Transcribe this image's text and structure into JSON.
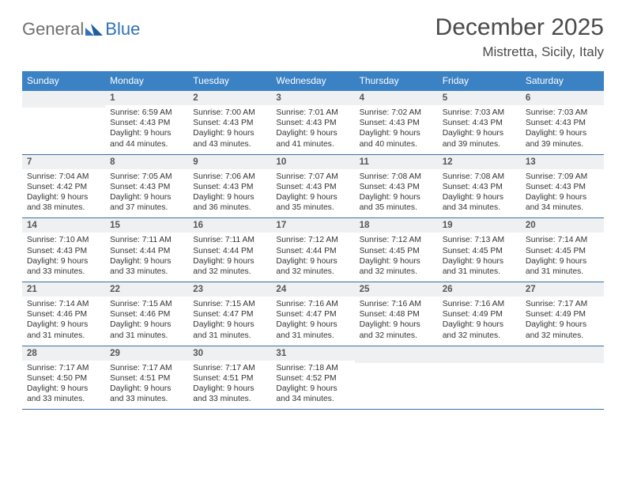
{
  "brand": {
    "text1": "General",
    "text2": "Blue"
  },
  "title": "December 2025",
  "location": "Mistretta, Sicily, Italy",
  "day_names": [
    "Sunday",
    "Monday",
    "Tuesday",
    "Wednesday",
    "Thursday",
    "Friday",
    "Saturday"
  ],
  "colors": {
    "header_bg": "#3b82c4",
    "logo_gray": "#6f6f6f",
    "logo_blue": "#2f72b8",
    "daynum_bg": "#eef0f2",
    "rule": "#3b6fa0"
  },
  "weeks": [
    [
      {
        "n": "",
        "lines": []
      },
      {
        "n": "1",
        "lines": [
          "Sunrise: 6:59 AM",
          "Sunset: 4:43 PM",
          "Daylight: 9 hours",
          "and 44 minutes."
        ]
      },
      {
        "n": "2",
        "lines": [
          "Sunrise: 7:00 AM",
          "Sunset: 4:43 PM",
          "Daylight: 9 hours",
          "and 43 minutes."
        ]
      },
      {
        "n": "3",
        "lines": [
          "Sunrise: 7:01 AM",
          "Sunset: 4:43 PM",
          "Daylight: 9 hours",
          "and 41 minutes."
        ]
      },
      {
        "n": "4",
        "lines": [
          "Sunrise: 7:02 AM",
          "Sunset: 4:43 PM",
          "Daylight: 9 hours",
          "and 40 minutes."
        ]
      },
      {
        "n": "5",
        "lines": [
          "Sunrise: 7:03 AM",
          "Sunset: 4:43 PM",
          "Daylight: 9 hours",
          "and 39 minutes."
        ]
      },
      {
        "n": "6",
        "lines": [
          "Sunrise: 7:03 AM",
          "Sunset: 4:43 PM",
          "Daylight: 9 hours",
          "and 39 minutes."
        ]
      }
    ],
    [
      {
        "n": "7",
        "lines": [
          "Sunrise: 7:04 AM",
          "Sunset: 4:42 PM",
          "Daylight: 9 hours",
          "and 38 minutes."
        ]
      },
      {
        "n": "8",
        "lines": [
          "Sunrise: 7:05 AM",
          "Sunset: 4:43 PM",
          "Daylight: 9 hours",
          "and 37 minutes."
        ]
      },
      {
        "n": "9",
        "lines": [
          "Sunrise: 7:06 AM",
          "Sunset: 4:43 PM",
          "Daylight: 9 hours",
          "and 36 minutes."
        ]
      },
      {
        "n": "10",
        "lines": [
          "Sunrise: 7:07 AM",
          "Sunset: 4:43 PM",
          "Daylight: 9 hours",
          "and 35 minutes."
        ]
      },
      {
        "n": "11",
        "lines": [
          "Sunrise: 7:08 AM",
          "Sunset: 4:43 PM",
          "Daylight: 9 hours",
          "and 35 minutes."
        ]
      },
      {
        "n": "12",
        "lines": [
          "Sunrise: 7:08 AM",
          "Sunset: 4:43 PM",
          "Daylight: 9 hours",
          "and 34 minutes."
        ]
      },
      {
        "n": "13",
        "lines": [
          "Sunrise: 7:09 AM",
          "Sunset: 4:43 PM",
          "Daylight: 9 hours",
          "and 34 minutes."
        ]
      }
    ],
    [
      {
        "n": "14",
        "lines": [
          "Sunrise: 7:10 AM",
          "Sunset: 4:43 PM",
          "Daylight: 9 hours",
          "and 33 minutes."
        ]
      },
      {
        "n": "15",
        "lines": [
          "Sunrise: 7:11 AM",
          "Sunset: 4:44 PM",
          "Daylight: 9 hours",
          "and 33 minutes."
        ]
      },
      {
        "n": "16",
        "lines": [
          "Sunrise: 7:11 AM",
          "Sunset: 4:44 PM",
          "Daylight: 9 hours",
          "and 32 minutes."
        ]
      },
      {
        "n": "17",
        "lines": [
          "Sunrise: 7:12 AM",
          "Sunset: 4:44 PM",
          "Daylight: 9 hours",
          "and 32 minutes."
        ]
      },
      {
        "n": "18",
        "lines": [
          "Sunrise: 7:12 AM",
          "Sunset: 4:45 PM",
          "Daylight: 9 hours",
          "and 32 minutes."
        ]
      },
      {
        "n": "19",
        "lines": [
          "Sunrise: 7:13 AM",
          "Sunset: 4:45 PM",
          "Daylight: 9 hours",
          "and 31 minutes."
        ]
      },
      {
        "n": "20",
        "lines": [
          "Sunrise: 7:14 AM",
          "Sunset: 4:45 PM",
          "Daylight: 9 hours",
          "and 31 minutes."
        ]
      }
    ],
    [
      {
        "n": "21",
        "lines": [
          "Sunrise: 7:14 AM",
          "Sunset: 4:46 PM",
          "Daylight: 9 hours",
          "and 31 minutes."
        ]
      },
      {
        "n": "22",
        "lines": [
          "Sunrise: 7:15 AM",
          "Sunset: 4:46 PM",
          "Daylight: 9 hours",
          "and 31 minutes."
        ]
      },
      {
        "n": "23",
        "lines": [
          "Sunrise: 7:15 AM",
          "Sunset: 4:47 PM",
          "Daylight: 9 hours",
          "and 31 minutes."
        ]
      },
      {
        "n": "24",
        "lines": [
          "Sunrise: 7:16 AM",
          "Sunset: 4:47 PM",
          "Daylight: 9 hours",
          "and 31 minutes."
        ]
      },
      {
        "n": "25",
        "lines": [
          "Sunrise: 7:16 AM",
          "Sunset: 4:48 PM",
          "Daylight: 9 hours",
          "and 32 minutes."
        ]
      },
      {
        "n": "26",
        "lines": [
          "Sunrise: 7:16 AM",
          "Sunset: 4:49 PM",
          "Daylight: 9 hours",
          "and 32 minutes."
        ]
      },
      {
        "n": "27",
        "lines": [
          "Sunrise: 7:17 AM",
          "Sunset: 4:49 PM",
          "Daylight: 9 hours",
          "and 32 minutes."
        ]
      }
    ],
    [
      {
        "n": "28",
        "lines": [
          "Sunrise: 7:17 AM",
          "Sunset: 4:50 PM",
          "Daylight: 9 hours",
          "and 33 minutes."
        ]
      },
      {
        "n": "29",
        "lines": [
          "Sunrise: 7:17 AM",
          "Sunset: 4:51 PM",
          "Daylight: 9 hours",
          "and 33 minutes."
        ]
      },
      {
        "n": "30",
        "lines": [
          "Sunrise: 7:17 AM",
          "Sunset: 4:51 PM",
          "Daylight: 9 hours",
          "and 33 minutes."
        ]
      },
      {
        "n": "31",
        "lines": [
          "Sunrise: 7:18 AM",
          "Sunset: 4:52 PM",
          "Daylight: 9 hours",
          "and 34 minutes."
        ]
      },
      {
        "n": "",
        "lines": []
      },
      {
        "n": "",
        "lines": []
      },
      {
        "n": "",
        "lines": []
      }
    ]
  ]
}
